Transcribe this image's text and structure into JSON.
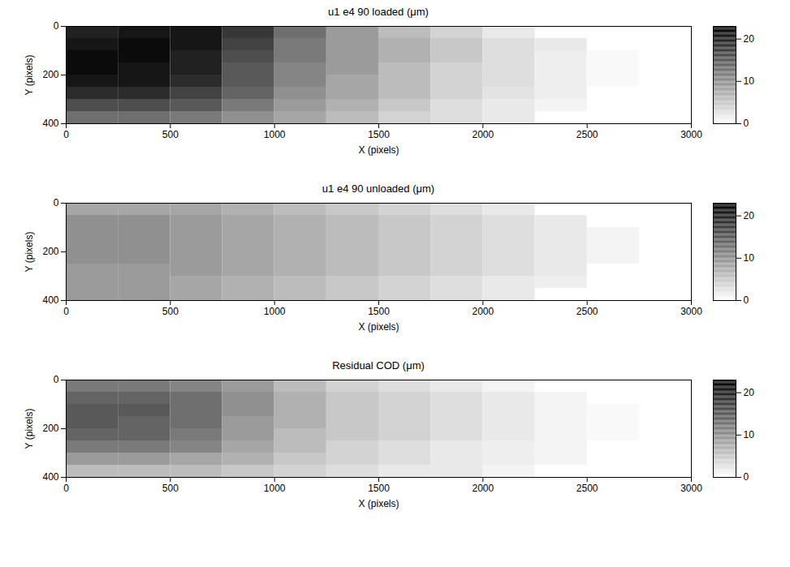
{
  "chart_data": [
    {
      "type": "heatmap",
      "title": "u1 e4 90 loaded (μm)",
      "xlabel": "X (pixels)",
      "ylabel": "Y (pixels)",
      "xlim": [
        0,
        3000
      ],
      "ylim": [
        400,
        0
      ],
      "xticks": [
        0,
        500,
        1000,
        1500,
        2000,
        2500,
        3000
      ],
      "yticks": [
        0,
        200,
        400
      ],
      "xbins": [
        0,
        250,
        500,
        750,
        1000,
        1250,
        1500,
        1750,
        2000,
        2250,
        2500,
        2750,
        3000
      ],
      "ybins": [
        0,
        50,
        100,
        150,
        200,
        250,
        300,
        350,
        400
      ],
      "cells": [
        [
          20,
          21,
          21,
          18,
          13,
          9,
          6,
          4,
          2,
          null,
          null,
          null
        ],
        [
          21,
          22,
          21,
          17,
          12,
          9,
          7,
          5,
          3,
          2,
          null,
          null
        ],
        [
          22,
          22,
          20,
          16,
          12,
          9,
          7,
          5,
          3,
          1.5,
          0.5,
          null
        ],
        [
          22,
          21,
          20,
          15,
          11,
          9,
          6,
          4,
          3,
          1.5,
          0.5,
          null
        ],
        [
          21,
          21,
          19,
          15,
          11,
          8,
          6,
          4,
          3,
          1.5,
          0.5,
          null
        ],
        [
          19,
          19,
          17,
          14,
          10,
          8,
          6,
          4,
          2.5,
          1.5,
          null,
          null
        ],
        [
          16,
          16,
          15,
          12,
          9,
          7,
          5,
          3,
          2,
          1,
          null,
          null
        ],
        [
          13,
          13,
          12,
          10,
          8,
          6,
          4,
          3,
          2,
          null,
          null,
          null
        ]
      ],
      "colorbar_range": [
        0,
        23
      ],
      "colorbar_ticks": [
        0,
        10,
        20
      ]
    },
    {
      "type": "heatmap",
      "title": "u1 e4 90 unloaded (μm)",
      "xlabel": "X (pixels)",
      "ylabel": "Y (pixels)",
      "xlim": [
        0,
        3000
      ],
      "ylim": [
        400,
        0
      ],
      "xticks": [
        0,
        500,
        1000,
        1500,
        2000,
        2500,
        3000
      ],
      "yticks": [
        0,
        200,
        400
      ],
      "xbins": [
        0,
        250,
        500,
        750,
        1000,
        1250,
        1500,
        1750,
        2000,
        2250,
        2500,
        2750,
        3000
      ],
      "ybins": [
        0,
        50,
        100,
        150,
        200,
        250,
        300,
        350,
        400
      ],
      "cells": [
        [
          8,
          8,
          8,
          7,
          6,
          5,
          4,
          3,
          2,
          null,
          null,
          null
        ],
        [
          10,
          10,
          9,
          8,
          7,
          6,
          5,
          4,
          3,
          2,
          null,
          null
        ],
        [
          10,
          10,
          9,
          8,
          7,
          6,
          5,
          4,
          3,
          2,
          1,
          null
        ],
        [
          10,
          10,
          9,
          8,
          7,
          6,
          5,
          4,
          3,
          2,
          1,
          null
        ],
        [
          10,
          10,
          9,
          8,
          7,
          6,
          5,
          4,
          3,
          2,
          1,
          null
        ],
        [
          9,
          9,
          9,
          8,
          7,
          6,
          5,
          4,
          3,
          2,
          null,
          null
        ],
        [
          9,
          9,
          8,
          7,
          6,
          5,
          4,
          3,
          2,
          1.5,
          null,
          null
        ],
        [
          9,
          9,
          8,
          7,
          6,
          5,
          4,
          3,
          2,
          null,
          null,
          null
        ]
      ],
      "colorbar_range": [
        0,
        23
      ],
      "colorbar_ticks": [
        0,
        10,
        20
      ]
    },
    {
      "type": "heatmap",
      "title": "Residual COD (μm)",
      "xlabel": "X (pixels)",
      "ylabel": "Y (pixels)",
      "xlim": [
        0,
        3000
      ],
      "ylim": [
        400,
        0
      ],
      "xticks": [
        0,
        500,
        1000,
        1500,
        2000,
        2500,
        3000
      ],
      "yticks": [
        0,
        200,
        400
      ],
      "xbins": [
        0,
        250,
        500,
        750,
        1000,
        1250,
        1500,
        1750,
        2000,
        2250,
        2500,
        2750,
        3000
      ],
      "ybins": [
        0,
        50,
        100,
        150,
        200,
        250,
        300,
        350,
        400
      ],
      "cells": [
        [
          12,
          12,
          11,
          9,
          6,
          4,
          3,
          2,
          1,
          null,
          null,
          null
        ],
        [
          14,
          14,
          13,
          10,
          7,
          5,
          4,
          3,
          2,
          1,
          null,
          null
        ],
        [
          15,
          15,
          13,
          10,
          7,
          5,
          4,
          3,
          2,
          1,
          0.5,
          null
        ],
        [
          15,
          14,
          13,
          9,
          7,
          5,
          4,
          3,
          2,
          1,
          0.5,
          null
        ],
        [
          14,
          14,
          12,
          9,
          6,
          5,
          4,
          3,
          2,
          1,
          0.5,
          null
        ],
        [
          12,
          12,
          11,
          8,
          6,
          4,
          3,
          2,
          1.5,
          1,
          null,
          null
        ],
        [
          9,
          9,
          8,
          7,
          5,
          4,
          3,
          2,
          1.5,
          1,
          null,
          null
        ],
        [
          6,
          6,
          6,
          5,
          4,
          3,
          2,
          2,
          1,
          null,
          null,
          null
        ]
      ],
      "colorbar_range": [
        0,
        23
      ],
      "colorbar_ticks": [
        0,
        10,
        20
      ]
    }
  ]
}
